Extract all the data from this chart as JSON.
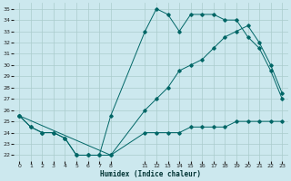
{
  "bg_color": "#cce8ee",
  "grid_color": "#aacccc",
  "line_color": "#006666",
  "xlabel": "Humidex (Indice chaleur)",
  "xlim": [
    -0.5,
    23.5
  ],
  "ylim": [
    21.5,
    35.5
  ],
  "xtick_positions": [
    0,
    1,
    2,
    3,
    4,
    5,
    6,
    7,
    8,
    11,
    12,
    13,
    14,
    15,
    16,
    17,
    18,
    19,
    20,
    21,
    22,
    23
  ],
  "xtick_labels": [
    "0",
    "1",
    "2",
    "3",
    "4",
    "5",
    "6",
    "7",
    "8",
    "11",
    "12",
    "13",
    "14",
    "15",
    "16",
    "17",
    "18",
    "19",
    "20",
    "21",
    "22",
    "23"
  ],
  "yticks": [
    22,
    23,
    24,
    25,
    26,
    27,
    28,
    29,
    30,
    31,
    32,
    33,
    34,
    35
  ],
  "line1_x": [
    0,
    1,
    2,
    3,
    4,
    5,
    6,
    7,
    8,
    11,
    12,
    13,
    14,
    15,
    16,
    17,
    18,
    19,
    20,
    21,
    22,
    23
  ],
  "line1_y": [
    25.5,
    24.5,
    24.0,
    24.0,
    23.5,
    22.0,
    22.0,
    22.0,
    25.5,
    33.0,
    35.0,
    34.5,
    33.0,
    34.5,
    34.5,
    34.5,
    34.0,
    34.0,
    32.5,
    31.5,
    29.5,
    27.0
  ],
  "line2_x": [
    0,
    1,
    2,
    3,
    4,
    5,
    6,
    7,
    8,
    11,
    12,
    13,
    14,
    15,
    16,
    17,
    18,
    19,
    20,
    21,
    22,
    23
  ],
  "line2_y": [
    25.5,
    24.5,
    24.0,
    24.0,
    23.5,
    22.0,
    22.0,
    22.0,
    22.0,
    24.0,
    24.0,
    24.0,
    24.0,
    24.5,
    24.5,
    24.5,
    24.5,
    25.0,
    25.0,
    25.0,
    25.0,
    25.0
  ],
  "line3_x": [
    0,
    8,
    11,
    12,
    13,
    14,
    15,
    16,
    17,
    18,
    19,
    20,
    21,
    22,
    23
  ],
  "line3_y": [
    25.5,
    22.0,
    26.0,
    27.0,
    28.0,
    29.5,
    30.0,
    30.5,
    31.5,
    32.5,
    33.0,
    33.5,
    32.0,
    30.0,
    27.5
  ]
}
